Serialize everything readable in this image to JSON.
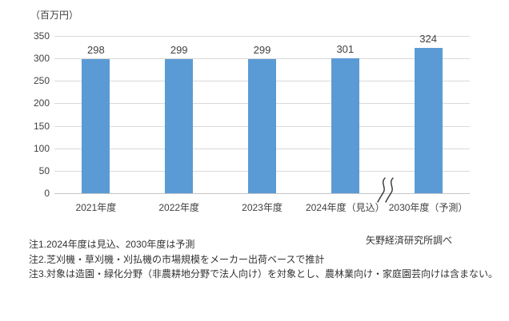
{
  "chart_data": {
    "type": "bar",
    "title": "",
    "unit_label": "（百万円）",
    "categories": [
      "2021年度",
      "2022年度",
      "2023年度",
      "2024年度（見込）",
      "2030年度（予測）"
    ],
    "values": [
      298,
      299,
      299,
      301,
      324
    ],
    "xlabel": "",
    "ylabel": "（百万円）",
    "ylim": [
      0,
      350
    ],
    "yticks": [
      0,
      50,
      100,
      150,
      200,
      250,
      300,
      350
    ],
    "grid": true,
    "legend": false,
    "bar_color": "#5b9bd5",
    "gridline_color": "#d9d9d9",
    "label_color": "#404040",
    "axis_break_between": [
      "2024年度（見込）",
      "2030年度（予測）"
    ],
    "data_labels": [
      "298",
      "299",
      "299",
      "301",
      "324"
    ]
  },
  "notes": [
    "注1.2024年度は見込、2030年度は予測",
    "注2.芝刈機・草刈機・刈払機の市場規模をメーカー出荷ベースで推計",
    "注3.対象は造園・緑化分野（非農耕地分野で法人向け）を対象とし、農林業向け・家庭園芸向けは含まない。"
  ],
  "source": "矢野経済研究所調べ"
}
